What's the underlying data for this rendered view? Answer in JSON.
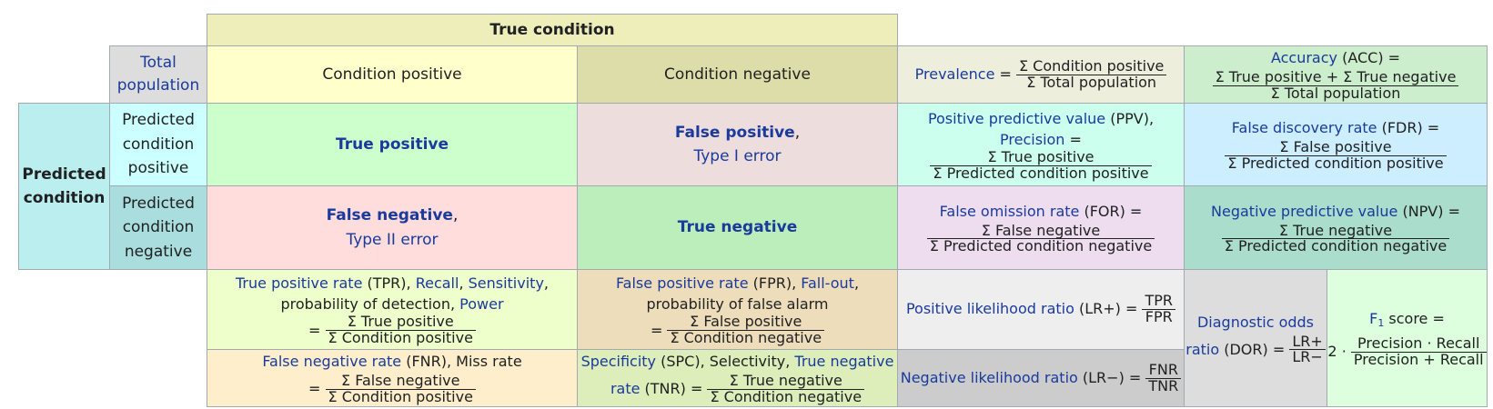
{
  "header": {
    "true_condition": "True condition",
    "total_population": "Total population",
    "condition_positive": "Condition positive",
    "condition_negative": "Condition negative",
    "predicted_condition": "Predicted condition",
    "predicted_condition_positive": "Predicted condition positive",
    "predicted_condition_negative": "Predicted condition negative"
  },
  "matrix": {
    "true_positive": "True positive",
    "false_positive": "False positive",
    "type_i_error": "Type I error",
    "false_negative": "False negative",
    "type_ii_error": "Type II error",
    "true_negative": "True negative",
    "comma": ","
  },
  "prevalence": {
    "label": "Prevalence",
    "eq": " = ",
    "num": "Σ Condition positive",
    "den": "Σ Total population"
  },
  "accuracy": {
    "label": "Accuracy",
    "abbr": " (ACC) =",
    "num": "Σ True positive + Σ True negative",
    "den": "Σ Total population"
  },
  "ppv": {
    "label": "Positive predictive value",
    "abbr": " (PPV),",
    "label2": "Precision",
    "eq": " =",
    "num": "Σ True positive",
    "den": "Σ Predicted condition positive"
  },
  "fdr": {
    "label": "False discovery rate",
    "abbr": " (FDR) =",
    "num": "Σ False positive",
    "den": "Σ Predicted condition positive"
  },
  "for": {
    "label": "False omission rate",
    "abbr": " (FOR) =",
    "num": "Σ False negative",
    "den": "Σ Predicted condition negative"
  },
  "npv": {
    "label": "Negative predictive value",
    "abbr": " (NPV) =",
    "num": "Σ True negative",
    "den": "Σ Predicted condition negative"
  },
  "tpr": {
    "label": "True positive rate",
    "abbr": " (TPR), ",
    "recall": "Recall",
    "sep": ", ",
    "sensitivity": "Sensitivity",
    "tail": ",",
    "line2": "probability of detection, ",
    "power": "Power",
    "eq": "= ",
    "num": "Σ True positive",
    "den": "Σ Condition positive"
  },
  "fpr": {
    "label": "False positive rate",
    "abbr": " (FPR), ",
    "fallout": "Fall-out",
    "tail": ",",
    "line2": "probability of false alarm",
    "eq": "= ",
    "num": "Σ False positive",
    "den": "Σ Condition negative"
  },
  "fnr": {
    "label": "False negative rate",
    "abbr": " (FNR), Miss rate",
    "eq": "= ",
    "num": "Σ False negative",
    "den": "Σ Condition positive"
  },
  "tnr": {
    "label": "Specificity",
    "abbr": " (SPC), Selectivity, ",
    "label2": "True negative",
    "rate": "rate",
    "abbr2": " (TNR) = ",
    "num": "Σ True negative",
    "den": "Σ Condition negative"
  },
  "lr_pos": {
    "label": "Positive likelihood ratio",
    "abbr": " (LR+) = ",
    "num": "TPR",
    "den": "FPR"
  },
  "lr_neg": {
    "label": "Negative likelihood ratio",
    "abbr": " (LR−) = ",
    "num": "FNR",
    "den": "TNR"
  },
  "dor": {
    "label": "Diagnostic odds",
    "label2": "ratio",
    "abbr": " (DOR) = ",
    "num": "LR+",
    "den": "LR−"
  },
  "f1": {
    "label": "F",
    "sub": "1",
    "label_tail": " score =",
    "coef": "2 · ",
    "num": "Precision · Recall",
    "den": "Precision + Recall"
  },
  "colors": {
    "border": "#a2a9b1",
    "link_blue": "#1a3a9c",
    "true_condition_bg": "#eeeebb",
    "total_population_bg": "#dddddd",
    "condition_positive_bg": "#ffffcc",
    "condition_negative_bg": "#dddda9",
    "predicted_condition_bg": "#bbeeee",
    "predicted_positive_bg": "#ccffff",
    "predicted_negative_bg": "#aadddd",
    "true_positive_bg": "#ccffcc",
    "false_positive_bg": "#eedddd",
    "false_negative_bg": "#ffdddd",
    "true_negative_bg": "#bbeebb",
    "prevalence_bg": "#eeeedd",
    "accuracy_bg": "#cceecc",
    "ppv_bg": "#ccffee",
    "fdr_bg": "#cceeff",
    "for_bg": "#eeddee",
    "npv_bg": "#aaddcc",
    "tpr_bg": "#eeffcc",
    "fpr_bg": "#eeddbb",
    "fnr_bg": "#ffeecc",
    "tnr_bg": "#ddeebb",
    "lr_pos_bg": "#eeeeee",
    "lr_neg_bg": "#cccccc",
    "dor_bg": "#dddddd",
    "f1_bg": "#ddffdd"
  }
}
